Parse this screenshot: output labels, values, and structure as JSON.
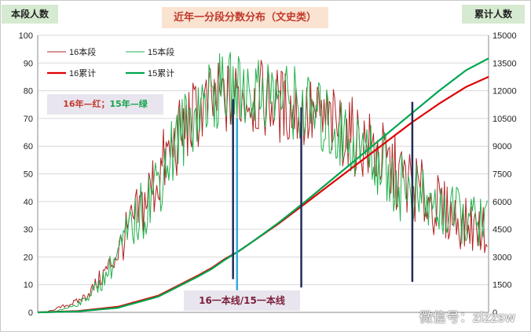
{
  "chart_data": {
    "type": "line",
    "title": "近年一分段分数分布（文史类）",
    "left_axis_title": "本段人数",
    "right_axis_title": "累计人数",
    "x_range": [
      300,
      637
    ],
    "ylim_left": [
      0,
      100
    ],
    "yticks_left": [
      0,
      10,
      20,
      30,
      40,
      50,
      60,
      70,
      80,
      90,
      100
    ],
    "ylim_right": [
      0,
      15000
    ],
    "yticks_right": [
      0,
      1500,
      3000,
      4500,
      6000,
      7500,
      9000,
      10500,
      12000,
      13500,
      15000
    ],
    "grid": "horizontal",
    "legend": "top-left",
    "color_note": {
      "red": "16年—红",
      "sep": "；",
      "green": "15年—绿"
    },
    "cutoff_label": "16一本线/15一本线",
    "watermark": "微信号：zizzsw",
    "series": [
      {
        "name": "16本段",
        "axis": "left",
        "color": "#b22222",
        "width": 1,
        "x": [
          300,
          306,
          312,
          318,
          324,
          330,
          336,
          342,
          348,
          354,
          360,
          366,
          372,
          378,
          384,
          390,
          396,
          402,
          408,
          414,
          420,
          426,
          432,
          438,
          444,
          450,
          456,
          462,
          468,
          474,
          480,
          486,
          492,
          498,
          504,
          510,
          516,
          522,
          528,
          534,
          540,
          546,
          552,
          558,
          564,
          570,
          576,
          582,
          588,
          594,
          600,
          606,
          612,
          618,
          624,
          630,
          636
        ],
        "values": [
          0,
          0,
          1,
          2,
          3,
          4,
          6,
          9,
          13,
          17,
          22,
          28,
          33,
          38,
          44,
          49,
          55,
          60,
          65,
          69,
          72,
          74,
          76,
          77,
          77,
          78,
          78,
          77,
          77,
          76,
          75,
          74,
          73,
          72,
          71,
          70,
          69,
          67,
          66,
          64,
          62,
          60,
          58,
          55,
          52,
          49,
          47,
          45,
          42,
          40,
          38,
          36,
          34,
          32,
          31,
          30,
          29
        ]
      },
      {
        "name": "15本段",
        "axis": "left",
        "color": "#22b04b",
        "width": 1,
        "x": [
          300,
          306,
          312,
          318,
          324,
          330,
          336,
          342,
          348,
          354,
          360,
          366,
          372,
          378,
          384,
          390,
          396,
          402,
          408,
          414,
          420,
          426,
          432,
          438,
          444,
          450,
          456,
          462,
          468,
          474,
          480,
          486,
          492,
          498,
          504,
          510,
          516,
          522,
          528,
          534,
          540,
          546,
          552,
          558,
          564,
          570,
          576,
          582,
          588,
          594,
          600,
          606,
          612,
          618,
          624,
          630,
          636
        ],
        "values": [
          0,
          0,
          0,
          1,
          2,
          3,
          5,
          8,
          11,
          16,
          21,
          27,
          32,
          37,
          42,
          48,
          54,
          60,
          65,
          70,
          74,
          77,
          79,
          80,
          80,
          80,
          81,
          80,
          80,
          79,
          78,
          77,
          76,
          74,
          72,
          70,
          68,
          66,
          64,
          62,
          60,
          58,
          56,
          53,
          50,
          47,
          44,
          42,
          40,
          38,
          37,
          36,
          35,
          34,
          33,
          33,
          32
        ]
      },
      {
        "name": "16累计",
        "axis": "right",
        "color": "#e00000",
        "width": 2.2,
        "x": [
          300,
          330,
          360,
          390,
          420,
          430,
          440,
          450,
          460,
          480,
          500,
          520,
          540,
          560,
          580,
          600,
          620,
          637
        ],
        "values": [
          0,
          70,
          300,
          900,
          2000,
          2400,
          2900,
          3300,
          3800,
          4800,
          5900,
          7000,
          8100,
          9200,
          10300,
          11300,
          12200,
          12750
        ]
      },
      {
        "name": "15累计",
        "axis": "right",
        "color": "#00a550",
        "width": 2.2,
        "x": [
          300,
          330,
          360,
          390,
          420,
          430,
          440,
          450,
          460,
          480,
          500,
          520,
          540,
          560,
          580,
          600,
          620,
          637
        ],
        "values": [
          0,
          50,
          250,
          850,
          1950,
          2350,
          2850,
          3300,
          3800,
          4850,
          6000,
          7200,
          8400,
          9600,
          10800,
          12000,
          13100,
          13750
        ]
      }
    ],
    "cutoff_lines": [
      {
        "x": 446,
        "color": "#1f2d5a",
        "range": [
          12,
          77
        ]
      },
      {
        "x": 449,
        "color": "#33aadd",
        "range": [
          8,
          70
        ]
      },
      {
        "x": 497,
        "color": "#1f2d5a",
        "range": [
          9,
          74
        ]
      },
      {
        "x": 580,
        "color": "#1f2d5a",
        "range": [
          11,
          76
        ]
      }
    ]
  }
}
